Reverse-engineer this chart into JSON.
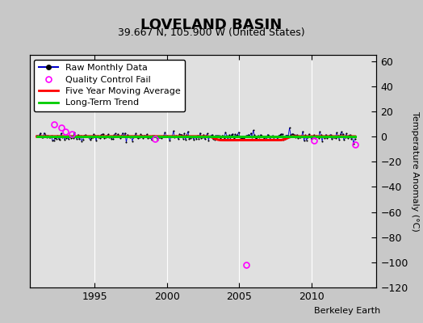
{
  "title": "LOVELAND BASIN",
  "subtitle": "39.667 N, 105.900 W (United States)",
  "ylabel": "Temperature Anomaly (°C)",
  "credit": "Berkeley Earth",
  "xlim": [
    1990.5,
    2014.5
  ],
  "ylim": [
    -120,
    65
  ],
  "yticks": [
    -120,
    -100,
    -80,
    -60,
    -40,
    -20,
    0,
    20,
    40,
    60
  ],
  "xticks": [
    1995,
    2000,
    2005,
    2010
  ],
  "bg_color": "#c8c8c8",
  "plot_bg_color": "#e0e0e0",
  "grid_color": "#ffffff",
  "raw_line_color": "#0000cc",
  "raw_dot_color": "#000000",
  "moving_avg_color": "#ff0000",
  "trend_color": "#00cc00",
  "qc_fail_color": "#ff00ff",
  "title_fontsize": 13,
  "subtitle_fontsize": 9,
  "ylabel_fontsize": 8,
  "legend_fontsize": 8,
  "tick_fontsize": 9,
  "credit_fontsize": 8,
  "seed": 42,
  "n_months": 264,
  "start_year": 1991.0,
  "raw_std": 1.8,
  "raw_mean": 0.1,
  "moving_avg_dip_start": 2003.0,
  "moving_avg_dip_end": 2008.5,
  "moving_avg_dip_val": -2.8,
  "qc_years": [
    1992.2,
    1992.7,
    1993.0,
    1993.4,
    1999.2,
    2005.5,
    2010.2,
    2013.0
  ],
  "qc_vals": [
    10,
    7,
    4,
    2,
    -2,
    -102,
    -3,
    -6
  ],
  "trend_slope": 0.04,
  "trend_intercept": -79.0
}
